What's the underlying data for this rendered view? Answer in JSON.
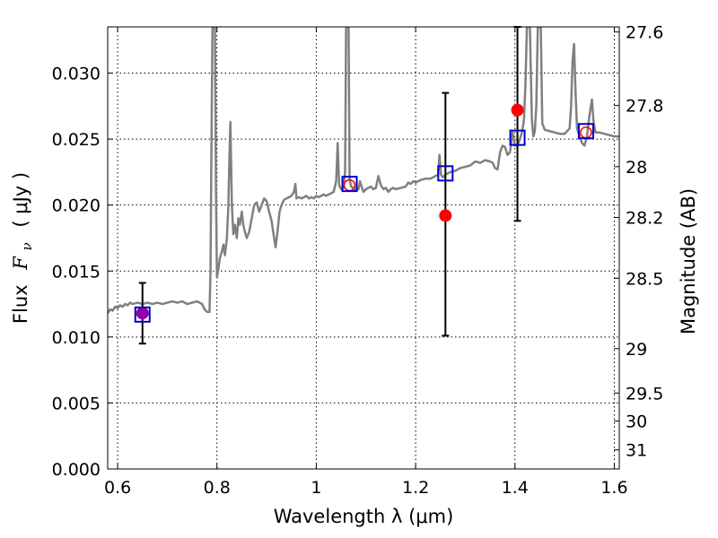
{
  "chart_data": {
    "type": "line",
    "xlabel": "Wavelength  λ (μm)",
    "ylabel_parts": {
      "prefix": "Flux",
      "symbol": "F",
      "subscript": "ν",
      "unit": "( μJy )"
    },
    "y2label": "Magnitude (AB)",
    "xlim": [
      0.58,
      1.61
    ],
    "ylim": [
      0.0,
      0.0335
    ],
    "x_ticks": [
      {
        "value": 0.6,
        "label": "0.6"
      },
      {
        "value": 0.8,
        "label": "0.8"
      },
      {
        "value": 1.0,
        "label": "1"
      },
      {
        "value": 1.2,
        "label": "1.2"
      },
      {
        "value": 1.4,
        "label": "1.4"
      },
      {
        "value": 1.6,
        "label": "1.6"
      }
    ],
    "y_ticks": [
      {
        "value": 0.0,
        "label": "0.000"
      },
      {
        "value": 0.005,
        "label": "0.005"
      },
      {
        "value": 0.01,
        "label": "0.010"
      },
      {
        "value": 0.015,
        "label": "0.015"
      },
      {
        "value": 0.02,
        "label": "0.020"
      },
      {
        "value": 0.025,
        "label": "0.025"
      },
      {
        "value": 0.03,
        "label": "0.030"
      }
    ],
    "y2_ticks": [
      {
        "mag": 27.6,
        "label": "27.6"
      },
      {
        "mag": 27.8,
        "label": "27.8"
      },
      {
        "mag": 28.0,
        "label": "28"
      },
      {
        "mag": 28.2,
        "label": "28.2"
      },
      {
        "mag": 28.5,
        "label": "28.5"
      },
      {
        "mag": 29.0,
        "label": "29"
      },
      {
        "mag": 29.5,
        "label": "29.5"
      },
      {
        "mag": 30.0,
        "label": "30"
      },
      {
        "mag": 31.0,
        "label": "31"
      }
    ],
    "grid": true,
    "colors": {
      "model": "#808080",
      "observed": "#ff0000",
      "model_phot": "#0000cc",
      "errorbar": "#000000",
      "overlap": "#9400a8"
    },
    "series": [
      {
        "type": "line",
        "points": [
          [
            0.58,
            0.0118
          ],
          [
            0.585,
            0.0121
          ],
          [
            0.59,
            0.012
          ],
          [
            0.595,
            0.0123
          ],
          [
            0.6,
            0.0122
          ],
          [
            0.605,
            0.0124
          ],
          [
            0.61,
            0.0123
          ],
          [
            0.615,
            0.0125
          ],
          [
            0.62,
            0.0124
          ],
          [
            0.625,
            0.0126
          ],
          [
            0.63,
            0.0125
          ],
          [
            0.64,
            0.0126
          ],
          [
            0.65,
            0.0125
          ],
          [
            0.66,
            0.0126
          ],
          [
            0.67,
            0.0125
          ],
          [
            0.68,
            0.0126
          ],
          [
            0.69,
            0.0125
          ],
          [
            0.7,
            0.0126
          ],
          [
            0.71,
            0.0127
          ],
          [
            0.72,
            0.0126
          ],
          [
            0.73,
            0.0127
          ],
          [
            0.74,
            0.0125
          ],
          [
            0.75,
            0.0126
          ],
          [
            0.76,
            0.0127
          ],
          [
            0.77,
            0.0125
          ],
          [
            0.775,
            0.0121
          ],
          [
            0.78,
            0.0119
          ],
          [
            0.785,
            0.0119
          ],
          [
            0.787,
            0.015
          ],
          [
            0.789,
            0.025
          ],
          [
            0.791,
            0.0335
          ],
          [
            0.796,
            0.0335
          ],
          [
            0.798,
            0.021
          ],
          [
            0.8,
            0.0145
          ],
          [
            0.803,
            0.0152
          ],
          [
            0.806,
            0.016
          ],
          [
            0.81,
            0.0165
          ],
          [
            0.813,
            0.017
          ],
          [
            0.816,
            0.0162
          ],
          [
            0.82,
            0.0175
          ],
          [
            0.823,
            0.02
          ],
          [
            0.825,
            0.0235
          ],
          [
            0.827,
            0.0263
          ],
          [
            0.83,
            0.02
          ],
          [
            0.833,
            0.0178
          ],
          [
            0.836,
            0.0185
          ],
          [
            0.84,
            0.0175
          ],
          [
            0.843,
            0.019
          ],
          [
            0.846,
            0.0185
          ],
          [
            0.85,
            0.0195
          ],
          [
            0.853,
            0.0185
          ],
          [
            0.856,
            0.018
          ],
          [
            0.86,
            0.0175
          ],
          [
            0.865,
            0.018
          ],
          [
            0.87,
            0.019
          ],
          [
            0.875,
            0.02
          ],
          [
            0.88,
            0.0202
          ],
          [
            0.885,
            0.0195
          ],
          [
            0.89,
            0.02
          ],
          [
            0.895,
            0.0205
          ],
          [
            0.9,
            0.0203
          ],
          [
            0.905,
            0.0195
          ],
          [
            0.91,
            0.0188
          ],
          [
            0.915,
            0.0175
          ],
          [
            0.918,
            0.0168
          ],
          [
            0.922,
            0.018
          ],
          [
            0.926,
            0.0195
          ],
          [
            0.93,
            0.02
          ],
          [
            0.935,
            0.0204
          ],
          [
            0.94,
            0.0205
          ],
          [
            0.945,
            0.0206
          ],
          [
            0.95,
            0.0207
          ],
          [
            0.955,
            0.021
          ],
          [
            0.958,
            0.0216
          ],
          [
            0.96,
            0.0205
          ],
          [
            0.965,
            0.0206
          ],
          [
            0.97,
            0.0205
          ],
          [
            0.975,
            0.0206
          ],
          [
            0.98,
            0.0207
          ],
          [
            0.985,
            0.0205
          ],
          [
            0.99,
            0.0206
          ],
          [
            0.995,
            0.0205
          ],
          [
            1.0,
            0.0207
          ],
          [
            1.005,
            0.0206
          ],
          [
            1.01,
            0.0207
          ],
          [
            1.015,
            0.0208
          ],
          [
            1.02,
            0.0207
          ],
          [
            1.025,
            0.0208
          ],
          [
            1.03,
            0.0209
          ],
          [
            1.035,
            0.021
          ],
          [
            1.04,
            0.0218
          ],
          [
            1.043,
            0.0247
          ],
          [
            1.046,
            0.0215
          ],
          [
            1.05,
            0.0212
          ],
          [
            1.055,
            0.0213
          ],
          [
            1.058,
            0.0225
          ],
          [
            1.06,
            0.0335
          ],
          [
            1.065,
            0.0335
          ],
          [
            1.067,
            0.022
          ],
          [
            1.07,
            0.0214
          ],
          [
            1.075,
            0.0213
          ],
          [
            1.08,
            0.0211
          ],
          [
            1.085,
            0.0212
          ],
          [
            1.088,
            0.0218
          ],
          [
            1.092,
            0.0213
          ],
          [
            1.095,
            0.021
          ],
          [
            1.1,
            0.0212
          ],
          [
            1.105,
            0.0213
          ],
          [
            1.11,
            0.0214
          ],
          [
            1.115,
            0.0212
          ],
          [
            1.12,
            0.0213
          ],
          [
            1.125,
            0.0222
          ],
          [
            1.13,
            0.0215
          ],
          [
            1.135,
            0.0212
          ],
          [
            1.14,
            0.0213
          ],
          [
            1.145,
            0.021
          ],
          [
            1.15,
            0.0212
          ],
          [
            1.155,
            0.0213
          ],
          [
            1.16,
            0.0212
          ],
          [
            1.17,
            0.0213
          ],
          [
            1.18,
            0.0214
          ],
          [
            1.185,
            0.0217
          ],
          [
            1.19,
            0.0216
          ],
          [
            1.195,
            0.0218
          ],
          [
            1.2,
            0.0217
          ],
          [
            1.21,
            0.0219
          ],
          [
            1.22,
            0.022
          ],
          [
            1.23,
            0.022
          ],
          [
            1.24,
            0.0222
          ],
          [
            1.245,
            0.0223
          ],
          [
            1.248,
            0.0238
          ],
          [
            1.251,
            0.0223
          ],
          [
            1.255,
            0.0221
          ],
          [
            1.26,
            0.0223
          ],
          [
            1.27,
            0.0225
          ],
          [
            1.28,
            0.0226
          ],
          [
            1.29,
            0.0228
          ],
          [
            1.3,
            0.0229
          ],
          [
            1.31,
            0.023
          ],
          [
            1.32,
            0.0233
          ],
          [
            1.33,
            0.0232
          ],
          [
            1.34,
            0.0234
          ],
          [
            1.35,
            0.0233
          ],
          [
            1.355,
            0.0232
          ],
          [
            1.36,
            0.0228
          ],
          [
            1.365,
            0.0227
          ],
          [
            1.37,
            0.024
          ],
          [
            1.375,
            0.0245
          ],
          [
            1.38,
            0.0244
          ],
          [
            1.385,
            0.0238
          ],
          [
            1.39,
            0.024
          ],
          [
            1.395,
            0.0255
          ],
          [
            1.4,
            0.0245
          ],
          [
            1.405,
            0.0245
          ],
          [
            1.41,
            0.025
          ],
          [
            1.414,
            0.0255
          ],
          [
            1.418,
            0.0264
          ],
          [
            1.421,
            0.029
          ],
          [
            1.424,
            0.0335
          ],
          [
            1.43,
            0.0335
          ],
          [
            1.434,
            0.0265
          ],
          [
            1.437,
            0.0252
          ],
          [
            1.44,
            0.0256
          ],
          [
            1.443,
            0.0275
          ],
          [
            1.446,
            0.0335
          ],
          [
            1.452,
            0.0335
          ],
          [
            1.455,
            0.0262
          ],
          [
            1.46,
            0.0257
          ],
          [
            1.47,
            0.0256
          ],
          [
            1.48,
            0.0255
          ],
          [
            1.49,
            0.0254
          ],
          [
            1.5,
            0.0254
          ],
          [
            1.505,
            0.0256
          ],
          [
            1.51,
            0.0258
          ],
          [
            1.513,
            0.0275
          ],
          [
            1.516,
            0.031
          ],
          [
            1.519,
            0.0322
          ],
          [
            1.522,
            0.0285
          ],
          [
            1.525,
            0.0258
          ],
          [
            1.53,
            0.0252
          ],
          [
            1.535,
            0.0247
          ],
          [
            1.54,
            0.0245
          ],
          [
            1.545,
            0.0252
          ],
          [
            1.55,
            0.0268
          ],
          [
            1.555,
            0.028
          ],
          [
            1.558,
            0.0264
          ],
          [
            1.562,
            0.0255
          ],
          [
            1.57,
            0.0255
          ],
          [
            1.58,
            0.0254
          ],
          [
            1.59,
            0.0253
          ],
          [
            1.6,
            0.0252
          ],
          [
            1.61,
            0.0252
          ]
        ]
      },
      {
        "type": "scatter",
        "points": [
          {
            "x": 0.65,
            "y": 0.0118
          },
          {
            "x": 1.067,
            "y": 0.0215
          },
          {
            "x": 1.26,
            "y": 0.0192
          },
          {
            "x": 1.405,
            "y": 0.0272
          },
          {
            "x": 1.543,
            "y": 0.0255
          }
        ]
      },
      {
        "type": "errorbar",
        "bars": [
          {
            "x": 0.65,
            "low": 0.0095,
            "high": 0.0141
          },
          {
            "x": 1.26,
            "low": 0.0101,
            "high": 0.0285
          },
          {
            "x": 1.405,
            "low": 0.0188,
            "high": 0.0335
          }
        ]
      },
      {
        "type": "scatter",
        "points": [
          {
            "x": 0.65,
            "y": 0.0117
          },
          {
            "x": 1.067,
            "y": 0.0216
          },
          {
            "x": 1.26,
            "y": 0.0224
          },
          {
            "x": 1.405,
            "y": 0.0251
          },
          {
            "x": 1.543,
            "y": 0.0256
          }
        ]
      }
    ]
  }
}
